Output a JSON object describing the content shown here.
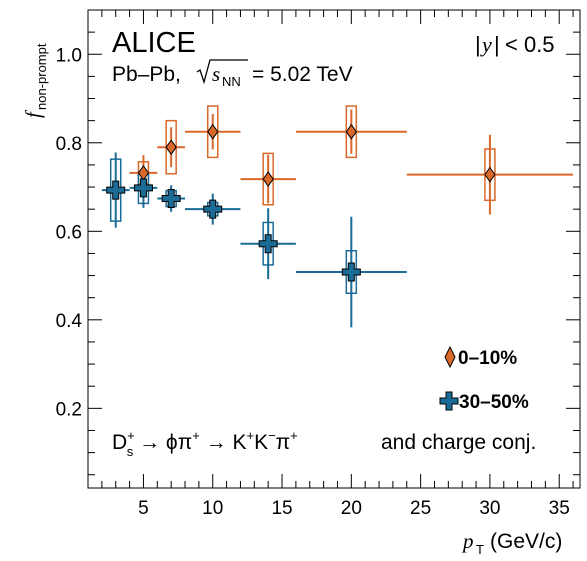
{
  "chart_data": {
    "type": "scatter",
    "experiment": "ALICE",
    "system": "Pb–Pb,",
    "energy_label": "= 5.02 TeV",
    "rapidity_label": "< 0.5",
    "decay_text": "and charge conj.",
    "xlabel": "(GeV/c)",
    "ylabel": "f",
    "ylabel_sub": "non-prompt",
    "xlim": [
      1,
      36.5
    ],
    "ylim": [
      0.02,
      1.1
    ],
    "x_ticks": [
      5,
      10,
      15,
      20,
      25,
      30,
      35
    ],
    "x_tick_labels": [
      "5",
      "10",
      "15",
      "20",
      "25",
      "30",
      "35"
    ],
    "y_ticks": [
      0.2,
      0.4,
      0.6,
      0.8,
      1.0
    ],
    "y_tick_labels": [
      "0.2",
      "0.4",
      "0.6",
      "0.8",
      "1.0"
    ],
    "series": [
      {
        "name": "0–10%",
        "color": "#d9682b",
        "marker": "diamond",
        "points": [
          {
            "x": 5,
            "xlo": 4,
            "xhi": 6,
            "y": 0.732,
            "stat": 0.04,
            "syst": 0.025
          },
          {
            "x": 7,
            "xlo": 6,
            "xhi": 8,
            "y": 0.79,
            "stat": 0.045,
            "syst": 0.06
          },
          {
            "x": 10,
            "xlo": 8,
            "xhi": 12,
            "y": 0.825,
            "stat": 0.04,
            "syst": 0.058
          },
          {
            "x": 14,
            "xlo": 12,
            "xhi": 16,
            "y": 0.718,
            "stat": 0.055,
            "syst": 0.058
          },
          {
            "x": 20,
            "xlo": 16,
            "xhi": 24,
            "y": 0.825,
            "stat": 0.05,
            "syst": 0.058
          },
          {
            "x": 30,
            "xlo": 24,
            "xhi": 36,
            "y": 0.728,
            "stat": 0.09,
            "syst": 0.058
          }
        ]
      },
      {
        "name": "30–50%",
        "color": "#1b6b97",
        "marker": "cross",
        "points": [
          {
            "x": 3,
            "xlo": 2,
            "xhi": 4,
            "y": 0.693,
            "stat": 0.085,
            "syst": 0.07
          },
          {
            "x": 5,
            "xlo": 4,
            "xhi": 6,
            "y": 0.698,
            "stat": 0.045,
            "syst": 0.035
          },
          {
            "x": 7,
            "xlo": 6,
            "xhi": 8,
            "y": 0.674,
            "stat": 0.03,
            "syst": 0.018
          },
          {
            "x": 10,
            "xlo": 8,
            "xhi": 12,
            "y": 0.65,
            "stat": 0.035,
            "syst": 0.015
          },
          {
            "x": 14,
            "xlo": 12,
            "xhi": 16,
            "y": 0.572,
            "stat": 0.08,
            "syst": 0.048
          },
          {
            "x": 20,
            "xlo": 16,
            "xhi": 24,
            "y": 0.508,
            "stat": 0.125,
            "syst": 0.048
          }
        ]
      }
    ]
  }
}
